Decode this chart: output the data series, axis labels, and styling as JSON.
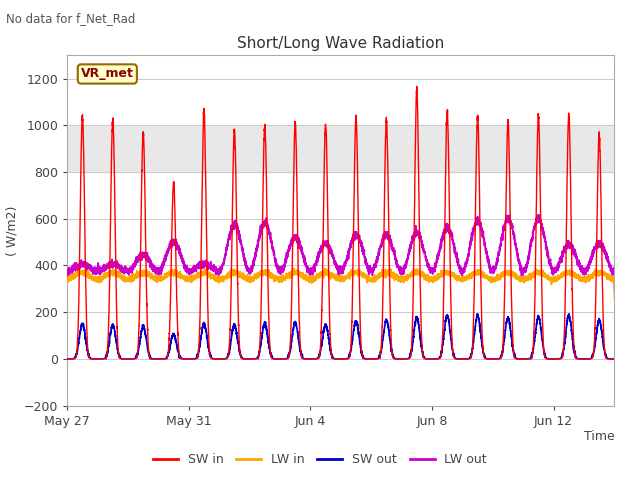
{
  "title": "Short/Long Wave Radiation",
  "xlabel": "Time",
  "ylabel": "( W/m2)",
  "top_left_text": "No data for f_Net_Rad",
  "legend_label_text": "VR_met",
  "ylim": [
    -200,
    1300
  ],
  "yticks": [
    -200,
    0,
    200,
    400,
    600,
    800,
    1000,
    1200
  ],
  "xtick_labels": [
    "May 27",
    "May 31",
    "Jun 4",
    "Jun 8",
    "Jun 12"
  ],
  "xtick_pos": [
    0,
    4,
    8,
    12,
    16
  ],
  "series": {
    "SW_in": {
      "color": "#ff0000",
      "label": "SW in"
    },
    "LW_in": {
      "color": "#ffa500",
      "label": "LW in"
    },
    "SW_out": {
      "color": "#0000cc",
      "label": "SW out"
    },
    "LW_out": {
      "color": "#cc00cc",
      "label": "LW out"
    }
  },
  "grid_color": "#cccccc",
  "fig_bg": "#ffffff",
  "plot_bg": "#ffffff",
  "n_days": 18,
  "points_per_day": 288,
  "SW_in_heights": [
    1040,
    1025,
    970,
    750,
    1065,
    980,
    1000,
    1010,
    1005,
    1030,
    1025,
    1150,
    1060,
    1040,
    1020,
    1040,
    1045,
    960
  ],
  "SW_out_heights": [
    150,
    145,
    140,
    105,
    150,
    145,
    150,
    155,
    145,
    160,
    165,
    175,
    185,
    185,
    175,
    180,
    185,
    165
  ],
  "LW_in_base": 340,
  "LW_in_hump": 30,
  "LW_out_base": 375,
  "LW_out_humps": [
    30,
    30,
    70,
    125,
    30,
    200,
    210,
    145,
    120,
    155,
    155,
    165,
    185,
    215,
    225,
    225,
    115,
    120
  ],
  "shaded_band": [
    800,
    1000
  ],
  "shaded_color": "#e8e8e8"
}
